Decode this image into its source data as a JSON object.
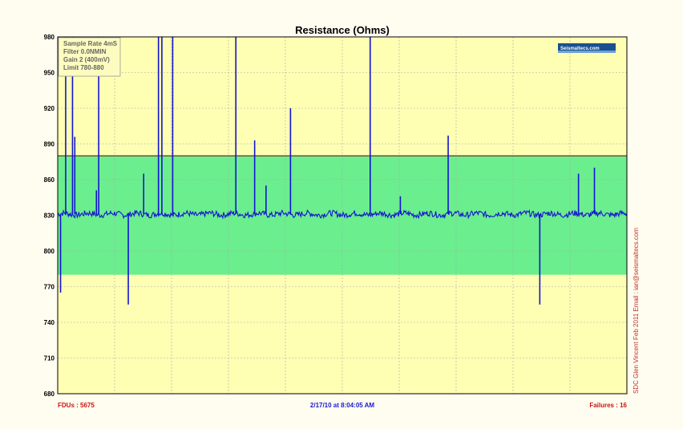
{
  "chart_data": {
    "type": "line",
    "title": "Resistance (Ohms)",
    "xlabel": "",
    "ylabel": "",
    "ylim": [
      680,
      980
    ],
    "yticks": [
      680,
      710,
      740,
      770,
      800,
      830,
      860,
      890,
      920,
      950,
      980
    ],
    "ytick_labels": [
      "680",
      "710",
      "740",
      "770",
      "800",
      "830",
      "860",
      "890",
      "920",
      "950",
      "980"
    ],
    "limits": {
      "low": 780,
      "high": 880
    },
    "baseline": 831,
    "grid": true,
    "series": [
      {
        "name": "",
        "color": "#1414d0",
        "spikes": [
          {
            "x": 0.005,
            "y": 765
          },
          {
            "x": 0.014,
            "y": 980
          },
          {
            "x": 0.026,
            "y": 980
          },
          {
            "x": 0.03,
            "y": 896
          },
          {
            "x": 0.068,
            "y": 851
          },
          {
            "x": 0.072,
            "y": 980
          },
          {
            "x": 0.124,
            "y": 755
          },
          {
            "x": 0.151,
            "y": 865
          },
          {
            "x": 0.177,
            "y": 980
          },
          {
            "x": 0.183,
            "y": 980
          },
          {
            "x": 0.202,
            "y": 980
          },
          {
            "x": 0.313,
            "y": 980
          },
          {
            "x": 0.346,
            "y": 893
          },
          {
            "x": 0.366,
            "y": 855
          },
          {
            "x": 0.409,
            "y": 920
          },
          {
            "x": 0.549,
            "y": 980
          },
          {
            "x": 0.602,
            "y": 846
          },
          {
            "x": 0.686,
            "y": 897
          },
          {
            "x": 0.847,
            "y": 755
          },
          {
            "x": 0.915,
            "y": 865
          },
          {
            "x": 0.943,
            "y": 870
          }
        ]
      }
    ],
    "info_box": [
      "Sample Rate 4mS",
      "Filter 0.0NMIN",
      "Gain 2 (400mV)",
      "Limit 780-880"
    ],
    "footer": {
      "left": "FDUs : 5675",
      "center": "2/17/10 at 8:04:05 AM",
      "right": "Failures : 16"
    },
    "credit": "SDC Glen Vincent Feb 2011 Email : ian@seismaltecs.com",
    "logo": "Seismaltecs.com",
    "colors": {
      "background": "#fffdf0",
      "plot_background": "#ffffb4",
      "band": "#6bee8e",
      "limit_line": "#7a1010",
      "trace": "#1414d0"
    }
  }
}
